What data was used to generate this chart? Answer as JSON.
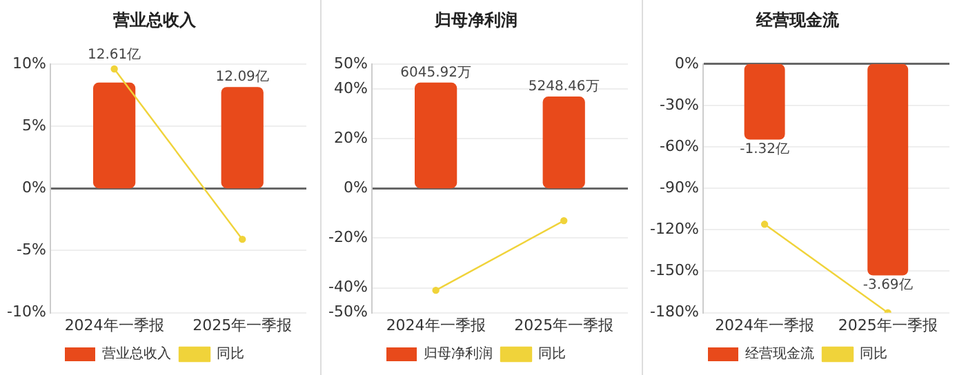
{
  "chart_data": [
    {
      "type": "bar",
      "title": "营业总收入",
      "categories": [
        "2024年一季报",
        "2025年一季报"
      ],
      "ylim": [
        -10,
        10
      ],
      "yticks": [
        {
          "value": -10,
          "label": "-10%"
        },
        {
          "value": -5,
          "label": "-5%"
        },
        {
          "value": 0,
          "label": "0%"
        },
        {
          "value": 5,
          "label": "5%"
        },
        {
          "value": 10,
          "label": "10%"
        }
      ],
      "grid": "y",
      "legend": "bottom",
      "marker": "circle",
      "series": [
        {
          "name": "营业总收入",
          "axis": "y2",
          "color": "#e84a1b",
          "values": [
            12.61,
            12.09
          ],
          "value_labels": [
            "12.61亿",
            "12.09亿"
          ]
        },
        {
          "name": "同比",
          "type": "line",
          "color": "#f0d33a",
          "values": [
            9.6,
            -4.1
          ]
        }
      ]
    },
    {
      "type": "bar",
      "title": "归母净利润",
      "categories": [
        "2024年一季报",
        "2025年一季报"
      ],
      "ylim": [
        -50,
        50
      ],
      "yticks": [
        {
          "value": -50,
          "label": "-50%"
        },
        {
          "value": -40,
          "label": "-40%"
        },
        {
          "value": -20,
          "label": "-20%"
        },
        {
          "value": 0,
          "label": "0%"
        },
        {
          "value": 20,
          "label": "20%"
        },
        {
          "value": 40,
          "label": "40%"
        },
        {
          "value": 50,
          "label": "50%"
        }
      ],
      "grid": "y",
      "legend": "bottom",
      "marker": "circle",
      "series": [
        {
          "name": "归母净利润",
          "axis": "y2",
          "color": "#e84a1b",
          "values": [
            6045.92,
            5248.46
          ],
          "value_labels": [
            "6045.92万",
            "5248.46万"
          ]
        },
        {
          "name": "同比",
          "type": "line",
          "color": "#f0d33a",
          "values": [
            -41,
            -13
          ]
        }
      ]
    },
    {
      "type": "bar",
      "title": "经营现金流",
      "categories": [
        "2024年一季报",
        "2025年一季报"
      ],
      "ylim": [
        -180,
        0
      ],
      "yticks": [
        {
          "value": -180,
          "label": "-180%"
        },
        {
          "value": -150,
          "label": "-150%"
        },
        {
          "value": -120,
          "label": "-120%"
        },
        {
          "value": -90,
          "label": "-90%"
        },
        {
          "value": -60,
          "label": "-60%"
        },
        {
          "value": -30,
          "label": "-30%"
        },
        {
          "value": 0,
          "label": "0%"
        }
      ],
      "grid": "y",
      "legend": "bottom",
      "marker": "circle",
      "series": [
        {
          "name": "经营现金流",
          "axis": "y2",
          "color": "#e84a1b",
          "values": [
            -1.32,
            -3.69
          ],
          "value_labels": [
            "-1.32亿",
            "-3.69亿"
          ]
        },
        {
          "name": "同比",
          "type": "line",
          "color": "#f0d33a",
          "values": [
            -116,
            -180
          ]
        }
      ]
    }
  ]
}
